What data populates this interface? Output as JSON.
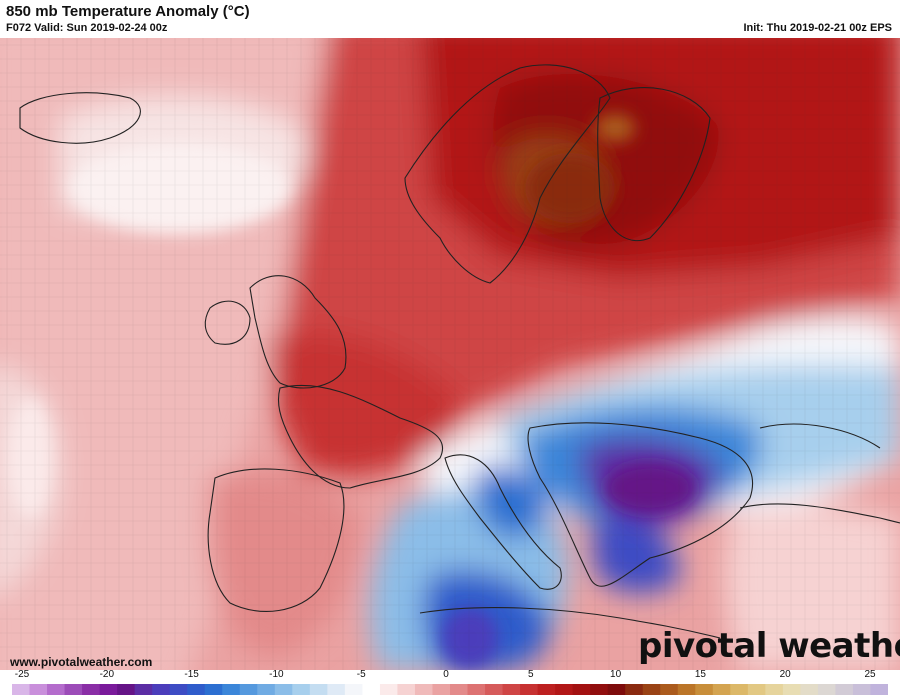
{
  "header": {
    "title": "850 mb Temperature Anomaly (°C)",
    "valid": "F072 Valid: Sun 2019-02-24 00z",
    "init": "Init: Thu 2019-02-21 00z EPS"
  },
  "footer": {
    "url": "www.pivotalweather.com",
    "logo": "pivotal weather"
  },
  "colorbar": {
    "unit": "°C",
    "min": -25,
    "max": 25,
    "tick_labels": [
      "-25",
      "-20",
      "-15",
      "-10",
      "-5",
      "0",
      "5",
      "10",
      "15",
      "20",
      "25"
    ],
    "colors": [
      "#d9b6e8",
      "#c98fdb",
      "#b46ccc",
      "#9c4cb8",
      "#8a2ea6",
      "#7a1a9b",
      "#651487",
      "#5b2da4",
      "#4b3dbb",
      "#3d4cc4",
      "#2f5ccb",
      "#2c6fd1",
      "#3b86d9",
      "#5599de",
      "#70abe3",
      "#8bbde8",
      "#a7cfed",
      "#c4ddf1",
      "#dfeaf6",
      "#f4f6fa",
      "#ffffff",
      "#fbeaea",
      "#f6d2d2",
      "#f0baba",
      "#eaa2a2",
      "#e38a8a",
      "#dd7272",
      "#d65b5b",
      "#cf4545",
      "#c73131",
      "#bd2020",
      "#b21717",
      "#a31111",
      "#910e0e",
      "#7e0c0c",
      "#8a2a10",
      "#9a4315",
      "#ab5b1d",
      "#bb7528",
      "#c88e3a",
      "#d4a450",
      "#dcb868",
      "#e2c883",
      "#e6d49c",
      "#e8ddb3",
      "#e3dcc8",
      "#dcd7d3",
      "#d2cbd6",
      "#c9bfd9",
      "#c0b3dc"
    ]
  },
  "map": {
    "region": "Europe",
    "field": "850 mb temperature anomaly",
    "warm_max_area": "Scandinavia",
    "cold_max_area": "Balkans"
  }
}
